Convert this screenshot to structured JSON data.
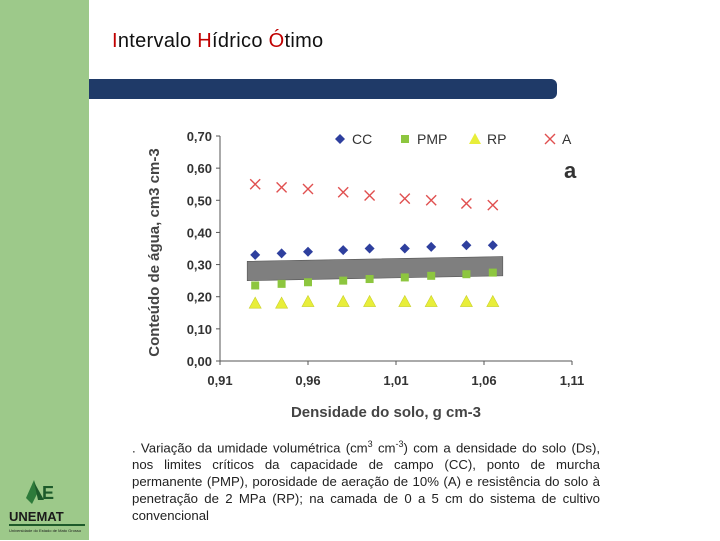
{
  "title": {
    "p1": "I",
    "p2": "ntervalo ",
    "p3": "H",
    "p4": "ídrico ",
    "p5": "Ó",
    "p6": "timo"
  },
  "logo": {
    "name": "UNEMAT",
    "tagline": "Universidade do Estado de Mato Grosso"
  },
  "colors": {
    "sidebar": "#9dc98a",
    "bar": "#1f3a68",
    "accent": "#c00000"
  },
  "chart_data": {
    "type": "scatter",
    "panel_label": "a",
    "xlabel": "Densidade do solo, g cm-3",
    "ylabel": "Conteúdo de água, cm3 cm-3",
    "xlim": [
      0.91,
      1.11
    ],
    "ylim": [
      0.0,
      0.7
    ],
    "x_ticks": [
      "0,91",
      "0,96",
      "1,01",
      "1,06",
      "1,11"
    ],
    "y_ticks": [
      "0,00",
      "0,10",
      "0,20",
      "0,30",
      "0,40",
      "0,50",
      "0,60",
      "0,70"
    ],
    "x": [
      0.93,
      0.945,
      0.96,
      0.98,
      0.995,
      1.015,
      1.03,
      1.05,
      1.065
    ],
    "series": [
      {
        "name": "CC",
        "marker": "diamond",
        "color": "#2e3f9e",
        "values": [
          0.33,
          0.335,
          0.34,
          0.345,
          0.35,
          0.35,
          0.355,
          0.36,
          0.36
        ]
      },
      {
        "name": "PMP",
        "marker": "square",
        "color": "#8dc63f",
        "values": [
          0.235,
          0.24,
          0.245,
          0.25,
          0.255,
          0.26,
          0.265,
          0.27,
          0.275
        ]
      },
      {
        "name": "RP",
        "marker": "triangle",
        "color": "#e8ee3a",
        "values": [
          0.18,
          0.18,
          0.185,
          0.185,
          0.185,
          0.185,
          0.185,
          0.185,
          0.185
        ]
      },
      {
        "name": "A",
        "marker": "x",
        "color": "#e05050",
        "values": [
          0.55,
          0.54,
          0.535,
          0.525,
          0.515,
          0.505,
          0.5,
          0.49,
          0.485
        ]
      }
    ],
    "band": {
      "color": "#7f7f7f",
      "lower": [
        0.25,
        0.265
      ],
      "upper": [
        0.31,
        0.325
      ]
    }
  },
  "caption": {
    "c1": ". Variação da umidade volumétrica (cm",
    "c2": "3",
    "c3": " cm",
    "c4": "-3",
    "c5": ") com a densidade do solo (Ds), nos limites críticos da capacidade de campo (CC), ponto de murcha permanente (PMP), porosidade de aeração de 10% (A) e resistência do solo à penetração de 2 MPa (RP); na camada de 0 a 5 cm do sistema de cultivo convencional"
  }
}
